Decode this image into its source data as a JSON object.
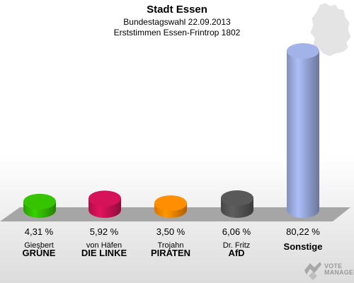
{
  "header": {
    "title": "Stadt Essen",
    "subtitle1": "Bundestagswahl 22.09.2013",
    "subtitle2": "Erststimmen Essen-Frintrop 1802"
  },
  "watermark": {
    "line1": "VOTE",
    "line2": "MANAGER"
  },
  "chart_data": {
    "type": "bar",
    "title": "Stadt Essen",
    "subtitle": "Bundestagswahl 22.09.2013 — Erststimmen Essen-Frintrop 1802",
    "categories": [
      "GRÜNE",
      "DIE LINKE",
      "PIRATEN",
      "AfD",
      "Sonstige"
    ],
    "candidates": [
      "Giesbert",
      "von Häfen",
      "Trojahn",
      "Dr. Fritz",
      ""
    ],
    "values": [
      4.31,
      5.92,
      3.5,
      6.06,
      80.22
    ],
    "labels": [
      "4,31 %",
      "5,92 %",
      "3,50 %",
      "6,06 %",
      "80,22 %"
    ],
    "colors": [
      "#33bb00",
      "#cc1155",
      "#ff8800",
      "#555555",
      "#99aadd"
    ],
    "ylim": [
      0,
      80.22
    ],
    "grid": false,
    "legend": "none"
  }
}
